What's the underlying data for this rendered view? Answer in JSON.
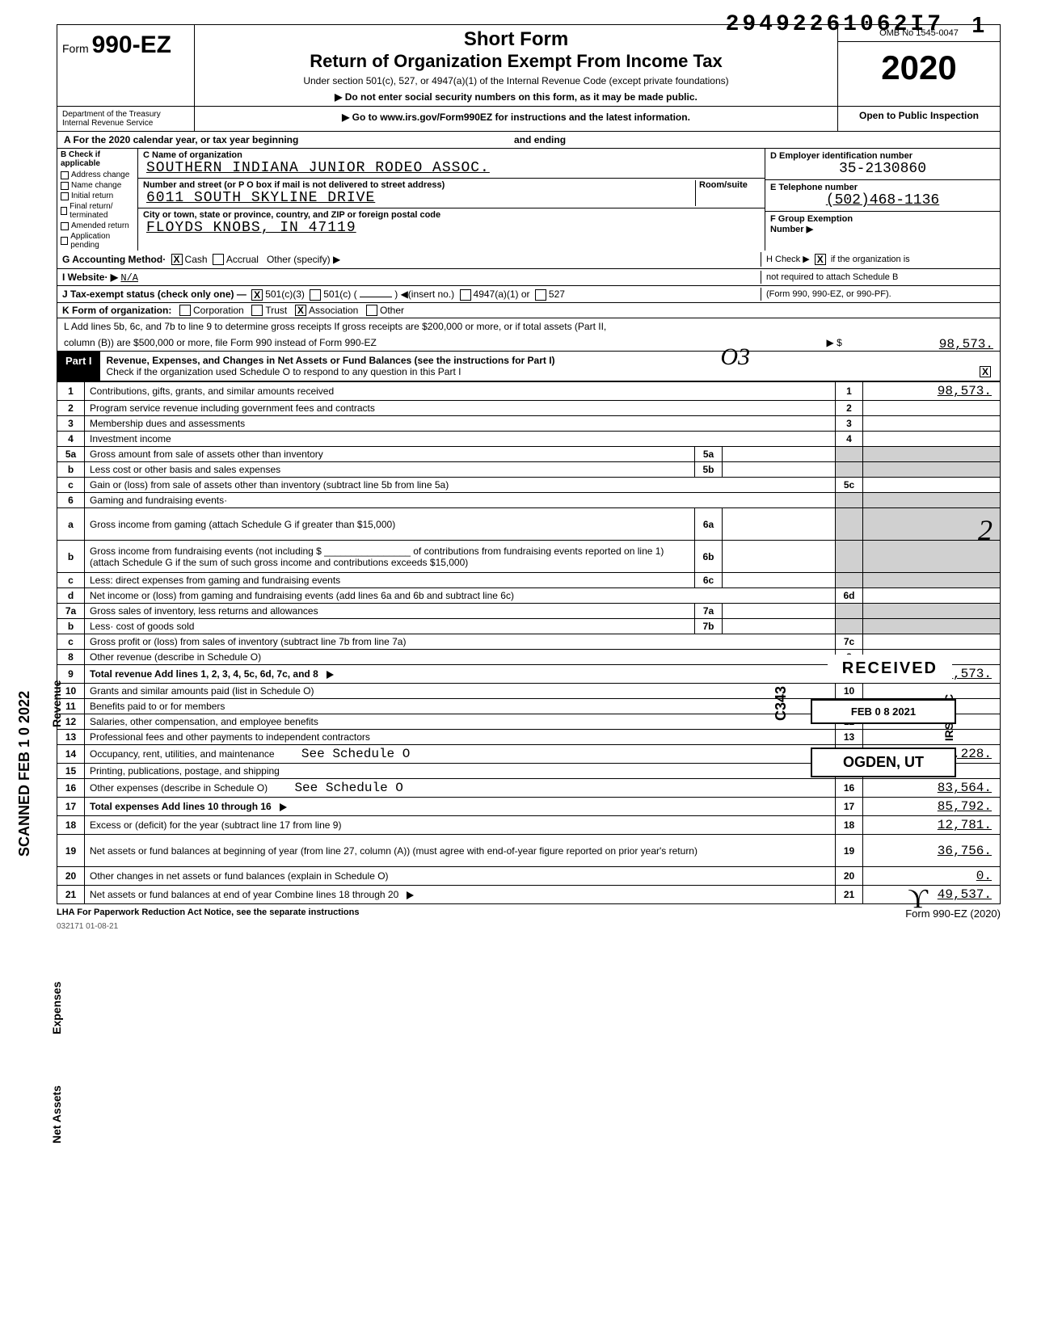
{
  "dln": "29492261062I7",
  "dln_suffix": "1",
  "form": {
    "prefix": "Form",
    "number": "990-EZ",
    "title1": "Short Form",
    "title2": "Return of Organization Exempt From Income Tax",
    "subtitle": "Under section 501(c), 527, or 4947(a)(1) of the Internal Revenue Code (except private foundations)",
    "warn": "▶ Do not enter social security numbers on this form, as it may be made public.",
    "goto": "▶ Go to www.irs.gov/Form990EZ for instructions and the latest information.",
    "omb": "OMB No 1545-0047",
    "year": "2020",
    "open": "Open to Public Inspection",
    "dept1": "Department of the Treasury",
    "dept2": "Internal Revenue Service"
  },
  "lineA": {
    "label": "A  For the 2020 calendar year, or tax year beginning",
    "mid": "and ending"
  },
  "colB": {
    "hdr": "B Check if applicable",
    "items": [
      "Address change",
      "Name change",
      "Initial return",
      "Final return/ terminated",
      "Amended return",
      "Application pending"
    ]
  },
  "colC": {
    "nameLbl": "C Name of organization",
    "name": "SOUTHERN INDIANA JUNIOR RODEO ASSOC.",
    "streetLbl": "Number and street (or P O box if mail is not delivered to street address)",
    "roomLbl": "Room/suite",
    "street": "6011 SOUTH SKYLINE DRIVE",
    "cityLbl": "City or town, state or province, country, and ZIP or foreign postal code",
    "city": "FLOYDS KNOBS, IN  47119"
  },
  "colD": {
    "lbl": "D Employer identification number",
    "val": "35-2130860"
  },
  "colE": {
    "lbl": "E  Telephone number",
    "val": "(502)468-1136"
  },
  "colF": {
    "lbl": "F  Group Exemption",
    "lbl2": "Number ▶"
  },
  "lineG": {
    "lbl": "G  Accounting Method·",
    "cash": "Cash",
    "accr": "Accrual",
    "other": "Other (specify) ▶"
  },
  "lineH": {
    "lbl": "H Check ▶",
    "txt1": "if the organization is",
    "txt2": "not required to attach Schedule B",
    "txt3": "(Form 990, 990-EZ, or 990-PF)."
  },
  "lineI": {
    "lbl": "I   Website·  ▶",
    "val": "N/A"
  },
  "lineJ": {
    "lbl": "J   Tax-exempt status (check only one) —",
    "a": "501(c)(3)",
    "b": "501(c) (",
    "c": ") ◀(insert no.)",
    "d": "4947(a)(1) or",
    "e": "527"
  },
  "lineK": {
    "lbl": "K  Form of organization:",
    "a": "Corporation",
    "b": "Trust",
    "c": "Association",
    "d": "Other"
  },
  "lineL": {
    "txt1": "L  Add lines 5b, 6c, and 7b to line 9 to determine gross receipts  If gross receipts are $200,000 or more, or if total assets (Part II,",
    "txt2": "column (B)) are $500,000 or more, file Form 990 instead of Form 990-EZ",
    "arrow": "▶  $",
    "val": "98,573."
  },
  "part1": {
    "tab": "Part I",
    "title": "Revenue, Expenses, and Changes in Net Assets or Fund Balances (see the instructions for Part I)",
    "check": "Check if the organization used Schedule O to respond to any question in this Part I"
  },
  "rows": [
    {
      "n": "1",
      "d": "Contributions, gifts, grants, and similar amounts received",
      "rn": "1",
      "a": "98,573."
    },
    {
      "n": "2",
      "d": "Program service revenue including government fees and contracts",
      "rn": "2",
      "a": ""
    },
    {
      "n": "3",
      "d": "Membership dues and assessments",
      "rn": "3",
      "a": ""
    },
    {
      "n": "4",
      "d": "Investment income",
      "rn": "4",
      "a": ""
    },
    {
      "n": "5a",
      "d": "Gross amount from sale of assets other than inventory",
      "in": "5a",
      "shaded": true
    },
    {
      "n": "b",
      "d": "Less cost or other basis and sales expenses",
      "in": "5b",
      "shaded": true
    },
    {
      "n": "c",
      "d": "Gain or (loss) from sale of assets other than inventory (subtract line 5b from line 5a)",
      "rn": "5c",
      "a": ""
    },
    {
      "n": "6",
      "d": "Gaming and fundraising events·",
      "shaded": true,
      "noR": true
    },
    {
      "n": "a",
      "d": "Gross income from gaming (attach Schedule G if greater than $15,000)",
      "in": "6a",
      "shaded": true,
      "tall": true
    },
    {
      "n": "b",
      "d": "Gross income from fundraising events (not including $ ________________ of contributions from fundraising events reported on line 1) (attach Schedule G if the sum of such gross income and contributions exceeds $15,000)",
      "in": "6b",
      "shaded": true,
      "tall": true
    },
    {
      "n": "c",
      "d": "Less: direct expenses from gaming and fundraising events",
      "in": "6c",
      "shaded": true
    },
    {
      "n": "d",
      "d": "Net income or (loss) from gaming and fundraising events (add lines 6a and 6b and subtract line 6c)",
      "rn": "6d",
      "a": ""
    },
    {
      "n": "7a",
      "d": "Gross sales of inventory, less returns and allowances",
      "in": "7a",
      "shaded": true
    },
    {
      "n": "b",
      "d": "Less· cost of goods sold",
      "in": "7b",
      "shaded": true
    },
    {
      "n": "c",
      "d": "Gross profit or (loss) from sales of inventory (subtract line 7b from line 7a)",
      "rn": "7c",
      "a": ""
    },
    {
      "n": "8",
      "d": "Other revenue (describe in Schedule O)",
      "rn": "8",
      "a": ""
    },
    {
      "n": "9",
      "d": "Total revenue  Add lines 1, 2, 3, 4, 5c, 6d, 7c, and 8",
      "rn": "9",
      "a": "98,573.",
      "bold": true,
      "arrow": true
    },
    {
      "n": "10",
      "d": "Grants and similar amounts paid (list in Schedule O)",
      "rn": "10",
      "a": ""
    },
    {
      "n": "11",
      "d": "Benefits paid to or for members",
      "rn": "11",
      "a": ""
    },
    {
      "n": "12",
      "d": "Salaries, other compensation, and employee benefits",
      "rn": "12",
      "a": ""
    },
    {
      "n": "13",
      "d": "Professional fees and other payments to independent contractors",
      "rn": "13",
      "a": ""
    },
    {
      "n": "14",
      "d": "Occupancy, rent, utilities, and maintenance",
      "extra": "See Schedule O",
      "rn": "14",
      "a": "2,228."
    },
    {
      "n": "15",
      "d": "Printing, publications, postage, and shipping",
      "rn": "15",
      "a": ""
    },
    {
      "n": "16",
      "d": "Other expenses (describe in Schedule O)",
      "extra": "See Schedule O",
      "rn": "16",
      "a": "83,564."
    },
    {
      "n": "17",
      "d": "Total expenses  Add lines 10 through 16",
      "rn": "17",
      "a": "85,792.",
      "bold": true,
      "arrow": true
    },
    {
      "n": "18",
      "d": "Excess or (deficit) for the year (subtract line 17 from line 9)",
      "rn": "18",
      "a": "12,781."
    },
    {
      "n": "19",
      "d": "Net assets or fund balances at beginning of year (from line 27, column (A)) (must agree with end-of-year figure reported on prior year's return)",
      "rn": "19",
      "a": "36,756.",
      "tall": true
    },
    {
      "n": "20",
      "d": "Other changes in net assets or fund balances (explain in Schedule O)",
      "rn": "20",
      "a": "0."
    },
    {
      "n": "21",
      "d": "Net assets or fund balances at end of year  Combine lines 18 through 20",
      "rn": "21",
      "a": "49,537.",
      "arrow": true,
      "thick": true
    }
  ],
  "footer": {
    "left": "LHA  For Paperwork Reduction Act Notice, see the separate instructions",
    "right": "Form 990-EZ (2020)"
  },
  "stamps": {
    "received": "RECEIVED",
    "date": "FEB 0 8 2021",
    "ogden": "OGDEN, UT",
    "c343": "C343",
    "irsosc": "IRS-OSC"
  },
  "hand": {
    "o3": "O3",
    "two": "2",
    "sig": "ϒ"
  },
  "smallnum": "032171 01-08-21",
  "styling": {
    "page_bg": "#ffffff",
    "ink": "#000000",
    "shaded_bg": "#d0d0d0",
    "border_main": 1.5,
    "border_thin": 1,
    "mono_font": "Courier New",
    "body_font": "Arial",
    "year_fontsize": 42,
    "title_fontsize": 24,
    "body_fontsize": 13,
    "small_fontsize": 11
  }
}
